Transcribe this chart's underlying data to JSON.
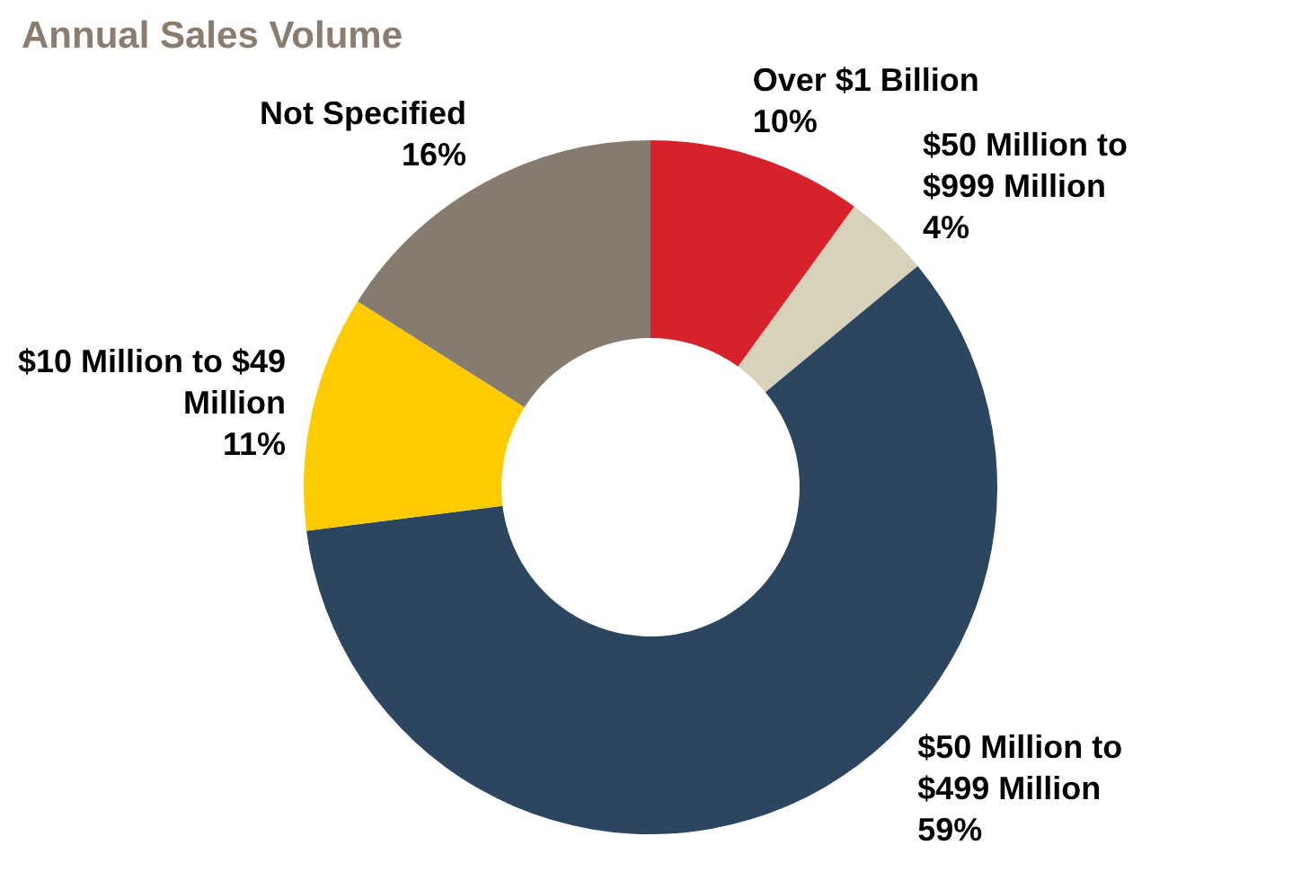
{
  "chart_data": {
    "type": "donut",
    "title": "Annual Sales Volume",
    "categories": [
      "Over $1 Billion",
      "$50 Million to $999 Million",
      "$50 Million to $499 Million",
      "$10 Million to $49 Million",
      "Not Specified"
    ],
    "values": [
      10,
      4,
      59,
      11,
      16
    ],
    "colors": [
      "#d7212b",
      "#d8d2bb",
      "#2c4661",
      "#fecb00",
      "#857b6f"
    ],
    "value_labels": [
      "10%",
      "4%",
      "59%",
      "11%",
      "16%"
    ],
    "legend": false
  }
}
